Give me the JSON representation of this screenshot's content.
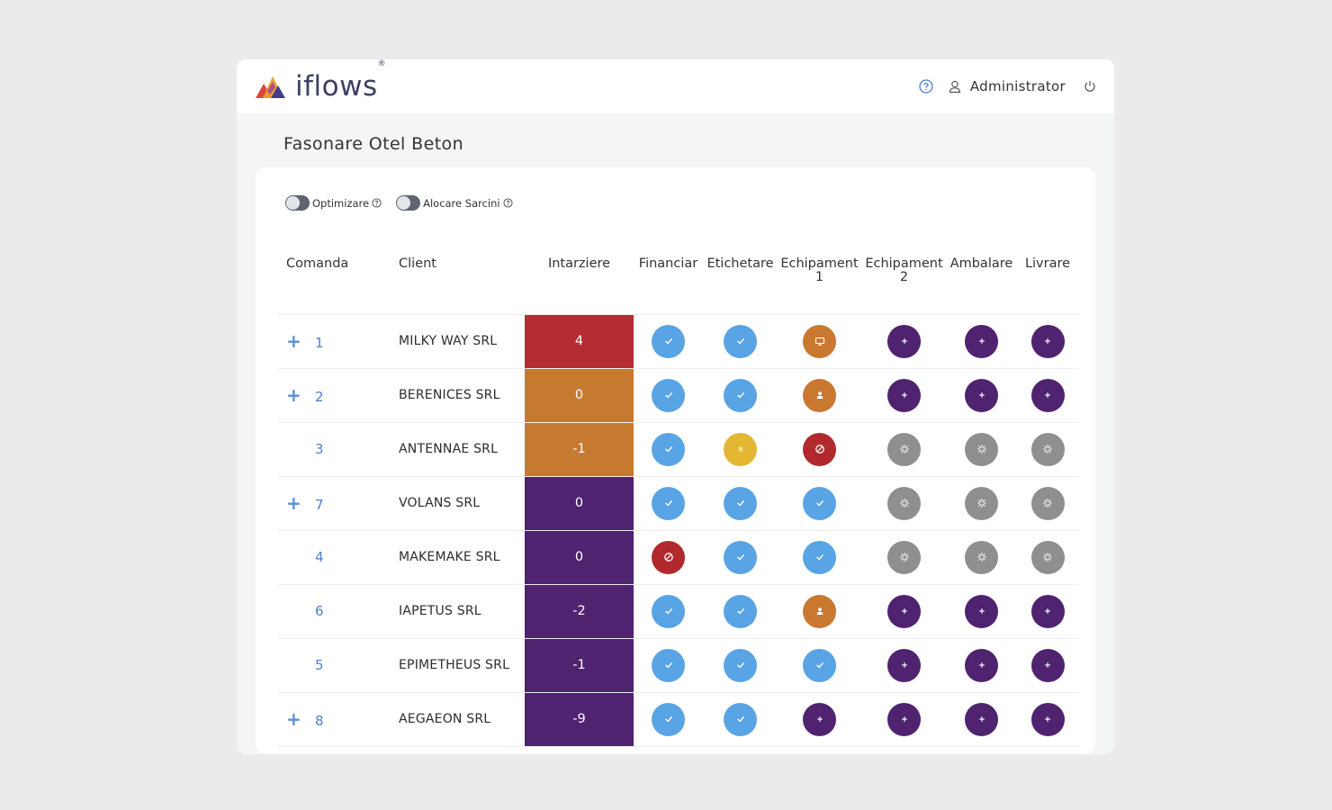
{
  "app": {
    "brand": "iflows",
    "brand_reg": "®",
    "user": "Administrator"
  },
  "page": {
    "title": "Fasonare Otel Beton"
  },
  "toggles": [
    {
      "label": "Optimizare",
      "enabled": false
    },
    {
      "label": "Alocare Sarcini",
      "enabled": false
    }
  ],
  "table": {
    "headers": {
      "comanda": "Comanda",
      "client": "Client",
      "intarziere": "Intarziere",
      "financiar": "Financiar",
      "etichetare": "Etichetare",
      "echipament1_a": "Echipament",
      "echipament1_b": "1",
      "echipament2_a": "Echipament",
      "echipament2_b": "2",
      "ambalare": "Ambalare",
      "livrare": "Livrare"
    },
    "rows": [
      {
        "expand": "+",
        "comanda": "1",
        "client": "MILKY WAY SRL",
        "intarziere": "4",
        "delay_color": "#b42d33",
        "status": [
          "done",
          "done",
          "monitor",
          "add",
          "add",
          "add"
        ]
      },
      {
        "expand": "+",
        "comanda": "2",
        "client": "BERENICES SRL",
        "intarziere": "0",
        "delay_color": "#c67a30",
        "status": [
          "done",
          "done",
          "person",
          "add",
          "add",
          "add"
        ]
      },
      {
        "expand": "",
        "comanda": "3",
        "client": "ANTENNAE SRL",
        "intarziere": "-1",
        "delay_color": "#c67a30",
        "status": [
          "done",
          "paused",
          "blocked",
          "loading",
          "loading",
          "loading"
        ]
      },
      {
        "expand": "+",
        "comanda": "7",
        "client": "VOLANS SRL",
        "intarziere": "0",
        "delay_color": "#4f2370",
        "status": [
          "done",
          "done",
          "done",
          "loading",
          "loading",
          "loading"
        ]
      },
      {
        "expand": "",
        "comanda": "4",
        "client": "MAKEMAKE SRL",
        "intarziere": "0",
        "delay_color": "#4f2370",
        "status": [
          "blocked",
          "done",
          "done",
          "loading",
          "loading",
          "loading"
        ]
      },
      {
        "expand": "",
        "comanda": "6",
        "client": "IAPETUS SRL",
        "intarziere": "-2",
        "delay_color": "#4f2370",
        "status": [
          "done",
          "done",
          "person",
          "add",
          "add",
          "add"
        ]
      },
      {
        "expand": "",
        "comanda": "5",
        "client": "EPIMETHEUS SRL",
        "intarziere": "-1",
        "delay_color": "#4f2370",
        "status": [
          "done",
          "done",
          "done",
          "add",
          "add",
          "add"
        ]
      },
      {
        "expand": "+",
        "comanda": "8",
        "client": "AEGAEON SRL",
        "intarziere": "-9",
        "delay_color": "#4f2370",
        "status": [
          "done",
          "done",
          "add",
          "add",
          "add",
          "add"
        ]
      }
    ]
  },
  "status_colors": {
    "done": "#58a4e4",
    "paused": "#e3b732",
    "blocked": "#b1292c",
    "monitor": "#c9782f",
    "person": "#c9782f",
    "add": "#4f2370",
    "loading": "#8f8f8f"
  },
  "icons": {
    "help": "question-circle-icon",
    "user": "user-icon",
    "power": "power-icon",
    "done": "check-icon",
    "paused": "pause-icon",
    "blocked": "blocked-icon",
    "monitor": "monitor-icon",
    "person": "person-icon",
    "add": "plus-icon",
    "loading": "spinner-icon"
  }
}
